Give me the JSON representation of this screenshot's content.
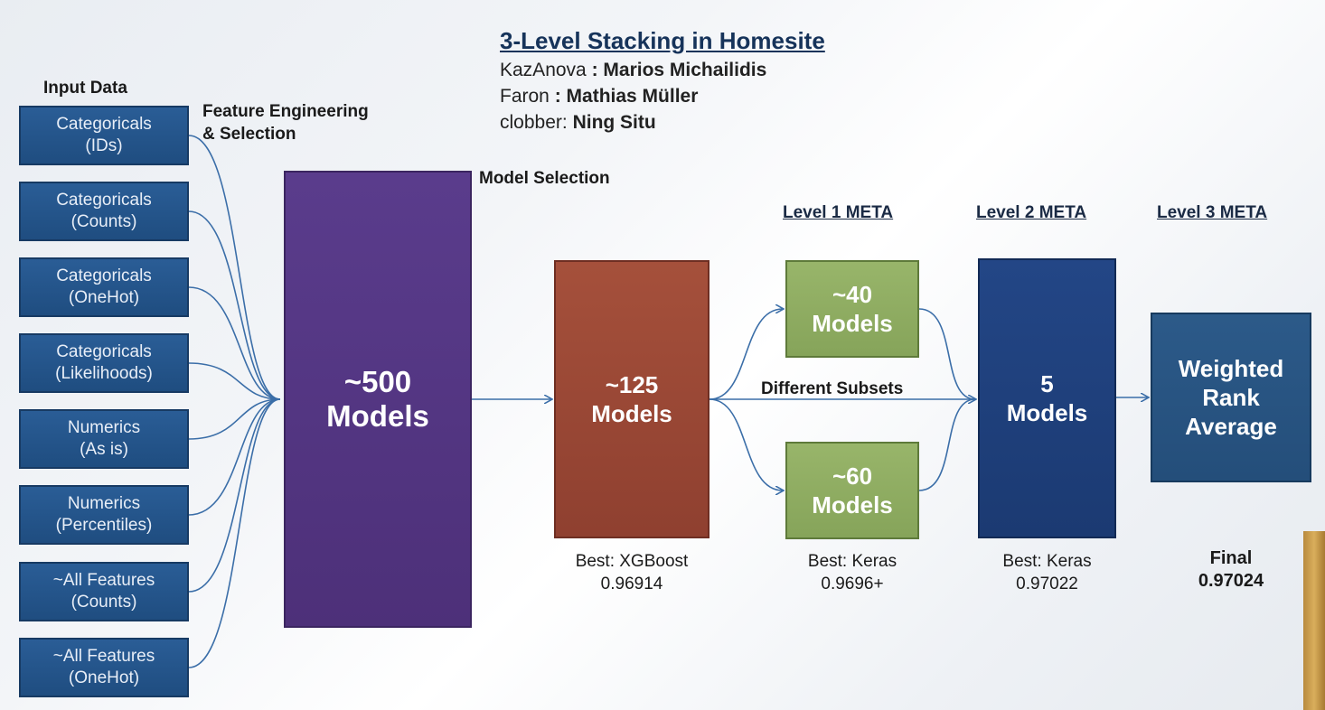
{
  "title": "3-Level Stacking in Homesite",
  "credits": [
    {
      "handle": "KazAnova",
      "sep": " : ",
      "name": "Marios  Michailidis"
    },
    {
      "handle": "Faron",
      "sep": " : ",
      "name": "Mathias  Müller"
    },
    {
      "handle": "clobber",
      "sep": ": ",
      "name": "Ning Situ"
    }
  ],
  "labels": {
    "input_data": "Input Data",
    "feature_engineering": "Feature Engineering",
    "selection": "& Selection",
    "model_selection": "Model Selection",
    "different_subsets": "Different Subsets"
  },
  "meta_levels": [
    "Level 1 META",
    "Level 2 META",
    "Level 3 META"
  ],
  "inputs": [
    {
      "line1": "Categoricals",
      "line2": "(IDs)"
    },
    {
      "line1": "Categoricals",
      "line2": "(Counts)"
    },
    {
      "line1": "Categoricals",
      "line2": "(OneHot)"
    },
    {
      "line1": "Categoricals",
      "line2": "(Likelihoods)"
    },
    {
      "line1": "Numerics",
      "line2": "(As is)"
    },
    {
      "line1": "Numerics",
      "line2": "(Percentiles)"
    },
    {
      "line1": "~All Features",
      "line2": "(Counts)"
    },
    {
      "line1": "~All Features",
      "line2": "(OneHot)"
    }
  ],
  "models": {
    "m500": {
      "line1": "~500",
      "line2": "Models"
    },
    "m125": {
      "line1": "~125",
      "line2": "Models"
    },
    "m40": {
      "line1": "~40",
      "line2": "Models"
    },
    "m60": {
      "line1": "~60",
      "line2": "Models"
    },
    "m5": {
      "line1": "5",
      "line2": "Models"
    },
    "weighted": {
      "line1": "Weighted",
      "line2": "Rank",
      "line3": "Average"
    }
  },
  "scores": {
    "level0": {
      "label": "Best: XGBoost",
      "value": "0.96914"
    },
    "level1": {
      "label": "Best: Keras",
      "value": "0.9696+"
    },
    "level2": {
      "label": "Best: Keras",
      "value": "0.97022"
    },
    "final": {
      "label": "Final",
      "value": "0.97024"
    }
  },
  "colors": {
    "input_box": "#1f4d80",
    "models_500": "#4d3079",
    "models_125": "#8f4030",
    "level1": "#86a45a",
    "level2": "#1b3a72",
    "level3": "#244e7a",
    "connector": "#3b6ea8"
  }
}
